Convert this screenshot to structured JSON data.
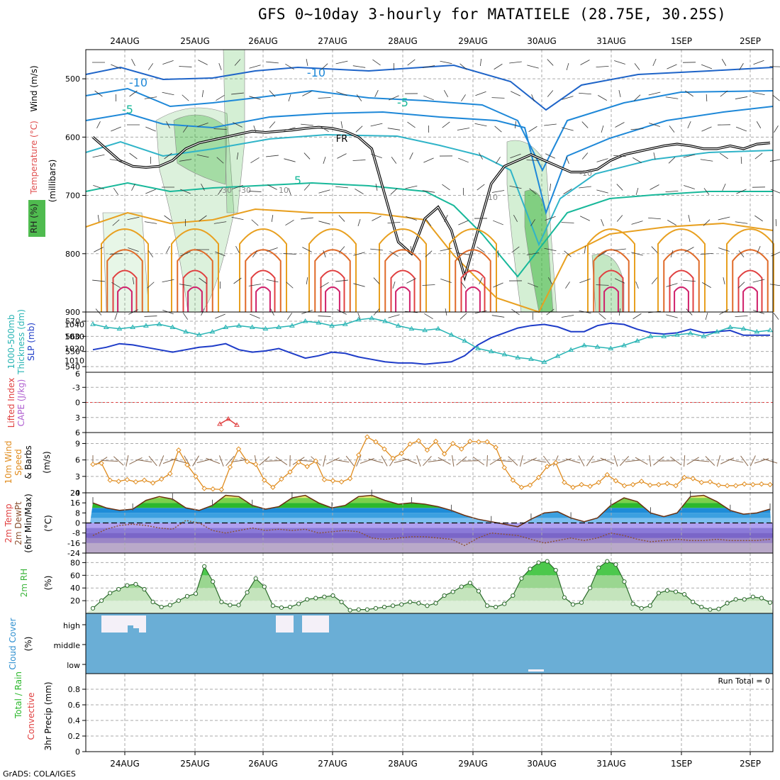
{
  "title": "GFS 0~10day 3-hourly for MATATIELE (28.75E, 30.25S)",
  "footer": "GrADS: COLA/IGES",
  "dates": [
    "24AUG",
    "25AUG",
    "26AUG",
    "27AUG",
    "28AUG",
    "29AUG",
    "30AUG",
    "31AUG",
    "1SEP",
    "2SEP"
  ],
  "colors": {
    "temp_cold": "#1e88d8",
    "temp_5": "#18b89a",
    "temp_warm": "#e8a020",
    "temp_hot": "#e04040",
    "rh": "#3cb43c",
    "slp": "#1e3cc8",
    "thickness": "#28b4b4",
    "wind": "#e08c1e",
    "cloud": "#6aaed6",
    "freezing": "#000000"
  },
  "chart_data": [
    {
      "type": "heatmap",
      "name": "upper",
      "ylabel_lines": [
        "Wind (m/s)",
        "Temperature (°C)",
        "RH (%)",
        "(millibars)"
      ],
      "yticks": [
        "500",
        "600",
        "700",
        "800",
        "900"
      ],
      "ylim": [
        450,
        900
      ],
      "contour_labels": [
        "-10",
        "-10",
        "-5",
        "-5",
        "5",
        "FR",
        "-10",
        "-30",
        "-30",
        "10",
        "10"
      ],
      "freezing_level": [
        600,
        620,
        640,
        650,
        652,
        650,
        640,
        620,
        610,
        605,
        600,
        595,
        590,
        592,
        590,
        588,
        585,
        583,
        585,
        590,
        600,
        620,
        700,
        780,
        800,
        740,
        720,
        760,
        840,
        760,
        680,
        650,
        640,
        630,
        640,
        650,
        660,
        660,
        655,
        640,
        630,
        625,
        620,
        615,
        612,
        615,
        620,
        620,
        615,
        620,
        612,
        610
      ]
    },
    {
      "type": "line",
      "name": "slp_thickness",
      "ylabel_lines": [
        "1000-500mb",
        "Thickness (dm)",
        "SLP (mb)"
      ],
      "left_ticks": [
        "540",
        "550",
        "560",
        "570"
      ],
      "right_ticks": [
        "1010",
        "1020",
        "1030",
        "1040"
      ],
      "series": [
        {
          "name": "SLP (mb)",
          "axis": "right",
          "values": [
            1019,
            1021,
            1024,
            1023,
            1021,
            1019,
            1017,
            1019,
            1021,
            1022,
            1024,
            1019,
            1017,
            1018,
            1020,
            1016,
            1012,
            1014,
            1017,
            1016,
            1013,
            1011,
            1009,
            1008,
            1008,
            1007,
            1008,
            1009,
            1014,
            1023,
            1029,
            1033,
            1037,
            1039,
            1040,
            1038,
            1034,
            1034,
            1039,
            1041,
            1040,
            1036,
            1033,
            1032,
            1033,
            1036,
            1033,
            1034,
            1035,
            1031,
            1031,
            1031
          ]
        },
        {
          "name": "1000-500mb Thickness (dm)",
          "axis": "left",
          "values": [
            568,
            566,
            565,
            566,
            567,
            568,
            566,
            563,
            561,
            563,
            566,
            567,
            566,
            565,
            566,
            567,
            570,
            569,
            567,
            568,
            571,
            572,
            570,
            567,
            565,
            564,
            565,
            561,
            557,
            552,
            550,
            548,
            546,
            545,
            543,
            547,
            551,
            554,
            553,
            552,
            554,
            557,
            560,
            560,
            561,
            562,
            560,
            563,
            566,
            565,
            563,
            564
          ]
        }
      ]
    },
    {
      "type": "line",
      "name": "cape_li",
      "ylabel_lines": [
        "Lifted Index",
        "CAPE (J/kg)"
      ],
      "yticks": [
        "-3",
        "0",
        "3",
        "6"
      ],
      "ylim": [
        -6,
        6
      ],
      "series": [
        {
          "name": "Lifted Index",
          "values": [
            4.3,
            3.3,
            4.5
          ]
        }
      ]
    },
    {
      "type": "line",
      "name": "wind10m",
      "ylabel_lines": [
        "10m Wind",
        "Speed",
        "& Barbs",
        "(m/s)"
      ],
      "yticks": [
        "0",
        "3",
        "6",
        "9"
      ],
      "ylim": [
        0,
        11
      ],
      "series": [
        {
          "name": "10m Wind Speed",
          "values": [
            5.2,
            5.4,
            2.3,
            2.1,
            2.4,
            2.0,
            2.3,
            1.8,
            2.5,
            3.5,
            7.8,
            5.1,
            3.0,
            0.8,
            0.7,
            0.6,
            4.7,
            8.0,
            5.7,
            5.2,
            2.3,
            1.0,
            2.5,
            3.8,
            5.6,
            4.8,
            5.8,
            2.4,
            2.2,
            2.0,
            2.6,
            6.9,
            10.2,
            9.3,
            8.0,
            6.3,
            7.2,
            8.9,
            9.5,
            7.8,
            9.4,
            7.1,
            9.0,
            8.0,
            9.4,
            9.3,
            9.3,
            8.3,
            4.6,
            2.3,
            1.0,
            1.4,
            2.8,
            4.8,
            5.5,
            1.9,
            1.0,
            1.5,
            1.2,
            1.9,
            3.3,
            2.2,
            1.3,
            1.5,
            2.1,
            1.4,
            1.5,
            1.7,
            1.3,
            2.8,
            2.6,
            1.9,
            2.0,
            1.4,
            1.3,
            1.3,
            1.6,
            1.5,
            1.6,
            1.5
          ]
        }
      ]
    },
    {
      "type": "area",
      "name": "temp2m",
      "ylabel_lines": [
        "2m Temp",
        "2m DewPt",
        "(6hr Min/Max)",
        "(°C)"
      ],
      "yticks": [
        "24",
        "16",
        "8",
        "0",
        "-8",
        "-16",
        "-24"
      ],
      "ylim": [
        -24,
        24
      ],
      "series": [
        {
          "name": "2m Temp",
          "values": [
            16,
            12,
            10,
            11,
            18,
            21,
            19,
            12,
            10,
            14,
            22,
            21,
            14,
            11,
            13,
            20,
            22,
            16,
            12,
            14,
            21,
            22,
            18,
            15,
            16,
            15,
            13,
            10,
            6,
            3,
            1,
            -1,
            -3,
            3,
            8,
            9,
            4,
            1,
            4,
            14,
            20,
            17,
            8,
            5,
            8,
            21,
            22,
            17,
            10,
            7,
            8,
            11
          ]
        },
        {
          "name": "2m DewPt",
          "values": [
            -10,
            -5,
            -2,
            -1,
            -2,
            -4,
            -5,
            2,
            0,
            -6,
            -8,
            -6,
            -4,
            -6,
            -5,
            -6,
            -5,
            -8,
            -7,
            -6,
            -7,
            -12,
            -13,
            -12,
            -11,
            -11,
            -12,
            -13,
            -18,
            -12,
            -8,
            -9,
            -10,
            -13,
            -16,
            -14,
            -12,
            -14,
            -12,
            -8,
            -10,
            -13,
            -15,
            -14,
            -13,
            -14,
            -14,
            -13,
            -14,
            -14,
            -14,
            -13
          ]
        }
      ]
    },
    {
      "type": "area",
      "name": "rh2m",
      "ylabel_lines": [
        "2m RH",
        "(%)"
      ],
      "yticks": [
        "20",
        "40",
        "60",
        "80"
      ],
      "ylim": [
        0,
        95
      ],
      "series": [
        {
          "name": "2m RH",
          "values": [
            8,
            20,
            32,
            38,
            44,
            46,
            38,
            18,
            10,
            13,
            20,
            27,
            31,
            74,
            50,
            18,
            13,
            13,
            33,
            55,
            42,
            12,
            9,
            10,
            15,
            22,
            24,
            26,
            28,
            18,
            5,
            6,
            6,
            8,
            10,
            12,
            14,
            18,
            16,
            12,
            16,
            28,
            34,
            42,
            48,
            35,
            12,
            10,
            15,
            28,
            55,
            70,
            80,
            82,
            68,
            25,
            14,
            17,
            40,
            72,
            82,
            77,
            50,
            15,
            8,
            12,
            32,
            36,
            34,
            30,
            18,
            10,
            6,
            7,
            16,
            22,
            22,
            26,
            24,
            17
          ]
        }
      ]
    },
    {
      "type": "bar",
      "name": "cloud",
      "ylabel_lines": [
        "Cloud Cover",
        "(%)"
      ],
      "levels": [
        "high",
        "middle",
        "low"
      ]
    },
    {
      "type": "bar",
      "name": "precip",
      "ylabel_lines": [
        "Total / Rain",
        "Convective",
        "3hr Precip (mm)"
      ],
      "yticks": [
        "0",
        "0.2",
        "0.4",
        "0.6",
        "0.8"
      ],
      "ylim": [
        0,
        1
      ],
      "run_total": "Run Total = 0",
      "values": []
    }
  ]
}
